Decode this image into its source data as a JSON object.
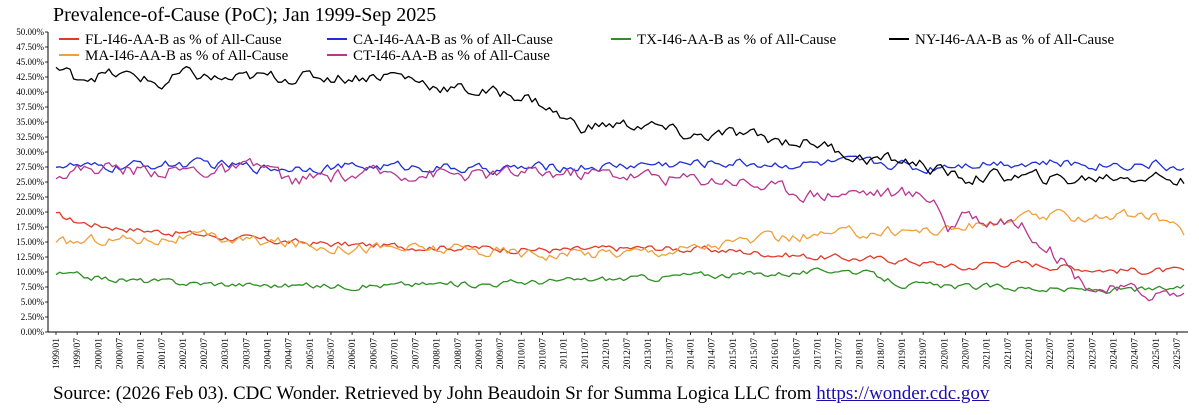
{
  "chart_data": {
    "type": "line",
    "title": "Prevalence-of-Cause (PoC); Jan 1999-Sep 2025",
    "y_tick_labels": [
      "0.00%",
      "2.50%",
      "5.00%",
      "7.50%",
      "10.00%",
      "12.50%",
      "15.00%",
      "17.50%",
      "20.00%",
      "22.50%",
      "25.00%",
      "27.50%",
      "30.00%",
      "32.50%",
      "35.00%",
      "37.50%",
      "40.00%",
      "42.50%",
      "45.00%",
      "47.50%",
      "50.00%"
    ],
    "ylim": [
      0,
      50
    ],
    "x_start": "1999/01",
    "x_end": "2025/09",
    "x_tick_every_months": 6,
    "grid": false,
    "legend_position": "top",
    "series": [
      {
        "name": "FL-I46-AA-B as % of All-Cause",
        "color": "#e03a2a",
        "anchors": [
          [
            "1999/01",
            19.5
          ],
          [
            "1999/06",
            18.5
          ],
          [
            "2000/01",
            17.8
          ],
          [
            "2001/01",
            17.0
          ],
          [
            "2002/01",
            16.5
          ],
          [
            "2003/01",
            15.8
          ],
          [
            "2004/01",
            15.2
          ],
          [
            "2005/01",
            14.8
          ],
          [
            "2006/01",
            14.5
          ],
          [
            "2007/01",
            14.3
          ],
          [
            "2008/01",
            14.2
          ],
          [
            "2009/01",
            14.0
          ],
          [
            "2010/01",
            13.8
          ],
          [
            "2011/01",
            13.6
          ],
          [
            "2012/01",
            13.8
          ],
          [
            "2013/01",
            14.0
          ],
          [
            "2014/01",
            13.8
          ],
          [
            "2015/01",
            13.5
          ],
          [
            "2016/01",
            13.0
          ],
          [
            "2017/01",
            12.5
          ],
          [
            "2018/01",
            12.2
          ],
          [
            "2019/01",
            12.0
          ],
          [
            "2019/07",
            11.5
          ],
          [
            "2020/01",
            11.2
          ],
          [
            "2020/07",
            10.5
          ],
          [
            "2021/01",
            11.5
          ],
          [
            "2021/07",
            11.5
          ],
          [
            "2022/01",
            11.3
          ],
          [
            "2023/01",
            10.8
          ],
          [
            "2024/01",
            10.3
          ],
          [
            "2025/01",
            10.2
          ],
          [
            "2025/09",
            10.0
          ]
        ],
        "noise": 0.5
      },
      {
        "name": "CA-I46-AA-B as % of All-Cause",
        "color": "#1f2fd6",
        "anchors": [
          [
            "1999/01",
            28.0
          ],
          [
            "2000/01",
            27.2
          ],
          [
            "2001/01",
            27.8
          ],
          [
            "2002/01",
            28.0
          ],
          [
            "2003/01",
            27.8
          ],
          [
            "2004/01",
            27.3
          ],
          [
            "2005/01",
            27.6
          ],
          [
            "2006/01",
            27.5
          ],
          [
            "2007/01",
            27.6
          ],
          [
            "2008/01",
            27.5
          ],
          [
            "2009/01",
            27.0
          ],
          [
            "2010/01",
            27.3
          ],
          [
            "2011/01",
            27.5
          ],
          [
            "2012/01",
            27.6
          ],
          [
            "2013/01",
            28.0
          ],
          [
            "2014/01",
            28.0
          ],
          [
            "2015/01",
            28.3
          ],
          [
            "2016/01",
            28.0
          ],
          [
            "2017/01",
            28.0
          ],
          [
            "2018/01",
            28.2
          ],
          [
            "2019/01",
            28.0
          ],
          [
            "2019/07",
            27.0
          ],
          [
            "2020/01",
            28.0
          ],
          [
            "2021/01",
            28.3
          ],
          [
            "2022/01",
            28.3
          ],
          [
            "2023/01",
            28.0
          ],
          [
            "2024/01",
            28.0
          ],
          [
            "2025/01",
            28.0
          ],
          [
            "2025/09",
            27.0
          ]
        ],
        "noise": 0.7
      },
      {
        "name": "TX-I46-AA-B as % of All-Cause",
        "color": "#2e8f23",
        "anchors": [
          [
            "1999/01",
            9.7
          ],
          [
            "2000/01",
            9.0
          ],
          [
            "2001/01",
            8.5
          ],
          [
            "2002/01",
            8.2
          ],
          [
            "2003/01",
            8.0
          ],
          [
            "2004/01",
            7.8
          ],
          [
            "2005/01",
            7.7
          ],
          [
            "2006/01",
            7.7
          ],
          [
            "2007/01",
            7.8
          ],
          [
            "2008/01",
            8.0
          ],
          [
            "2009/01",
            8.0
          ],
          [
            "2010/01",
            8.3
          ],
          [
            "2011/01",
            8.5
          ],
          [
            "2012/01",
            8.8
          ],
          [
            "2013/01",
            9.0
          ],
          [
            "2014/01",
            9.5
          ],
          [
            "2015/01",
            9.5
          ],
          [
            "2016/01",
            9.8
          ],
          [
            "2017/01",
            10.0
          ],
          [
            "2017/07",
            10.5
          ],
          [
            "2018/01",
            10.0
          ],
          [
            "2019/01",
            8.0
          ],
          [
            "2020/01",
            7.5
          ],
          [
            "2021/01",
            7.5
          ],
          [
            "2022/01",
            7.3
          ],
          [
            "2023/01",
            7.0
          ],
          [
            "2024/01",
            7.0
          ],
          [
            "2025/01",
            7.0
          ],
          [
            "2025/09",
            7.5
          ]
        ],
        "noise": 0.45
      },
      {
        "name": "NY-I46-AA-B as % of All-Cause",
        "color": "#000000",
        "anchors": [
          [
            "1999/01",
            44.0
          ],
          [
            "1999/06",
            42.5
          ],
          [
            "2000/01",
            43.0
          ],
          [
            "2001/01",
            42.5
          ],
          [
            "2001/07",
            41.0
          ],
          [
            "2002/01",
            43.0
          ],
          [
            "2003/01",
            42.0
          ],
          [
            "2004/01",
            42.5
          ],
          [
            "2005/01",
            42.5
          ],
          [
            "2006/01",
            42.5
          ],
          [
            "2007/01",
            43.0
          ],
          [
            "2008/01",
            41.0
          ],
          [
            "2009/01",
            40.0
          ],
          [
            "2010/01",
            39.5
          ],
          [
            "2010/07",
            38.0
          ],
          [
            "2011/01",
            35.5
          ],
          [
            "2011/07",
            34.0
          ],
          [
            "2012/01",
            34.5
          ],
          [
            "2013/01",
            34.5
          ],
          [
            "2014/01",
            32.5
          ],
          [
            "2015/01",
            33.0
          ],
          [
            "2016/01",
            32.0
          ],
          [
            "2017/01",
            31.5
          ],
          [
            "2018/01",
            29.0
          ],
          [
            "2019/01",
            28.5
          ],
          [
            "2019/07",
            28.0
          ],
          [
            "2020/01",
            26.5
          ],
          [
            "2020/07",
            25.5
          ],
          [
            "2021/01",
            26.0
          ],
          [
            "2022/01",
            25.8
          ],
          [
            "2023/01",
            25.3
          ],
          [
            "2024/01",
            26.0
          ],
          [
            "2025/01",
            26.0
          ],
          [
            "2025/09",
            25.0
          ]
        ],
        "noise": 0.9
      },
      {
        "name": "MA-I46-AA-B as % of All-Cause",
        "color": "#f0a03a",
        "anchors": [
          [
            "1999/01",
            14.5
          ],
          [
            "2000/01",
            15.5
          ],
          [
            "2001/01",
            15.5
          ],
          [
            "2002/01",
            15.8
          ],
          [
            "2003/01",
            15.5
          ],
          [
            "2004/01",
            15.0
          ],
          [
            "2005/01",
            14.5
          ],
          [
            "2006/01",
            14.2
          ],
          [
            "2007/01",
            14.0
          ],
          [
            "2008/01",
            13.8
          ],
          [
            "2009/01",
            13.5
          ],
          [
            "2010/01",
            13.3
          ],
          [
            "2011/01",
            13.0
          ],
          [
            "2012/01",
            13.3
          ],
          [
            "2013/01",
            13.5
          ],
          [
            "2014/01",
            14.0
          ],
          [
            "2015/01",
            15.0
          ],
          [
            "2016/01",
            15.5
          ],
          [
            "2017/01",
            16.0
          ],
          [
            "2018/01",
            16.5
          ],
          [
            "2019/01",
            17.0
          ],
          [
            "2020/01",
            17.0
          ],
          [
            "2021/01",
            18.0
          ],
          [
            "2022/01",
            19.0
          ],
          [
            "2023/01",
            19.3
          ],
          [
            "2024/01",
            19.5
          ],
          [
            "2025/01",
            19.0
          ],
          [
            "2025/05",
            18.5
          ],
          [
            "2025/09",
            15.8
          ]
        ],
        "noise": 0.8
      },
      {
        "name": "CT-I46-AA-B as % of All-Cause",
        "color": "#b8368f",
        "anchors": [
          [
            "1999/01",
            26.5
          ],
          [
            "2000/01",
            27.5
          ],
          [
            "2001/01",
            27.0
          ],
          [
            "2002/01",
            27.0
          ],
          [
            "2003/01",
            26.8
          ],
          [
            "2004/01",
            27.5
          ],
          [
            "2004/07",
            25.0
          ],
          [
            "2005/01",
            25.5
          ],
          [
            "2006/01",
            26.0
          ],
          [
            "2007/01",
            26.5
          ],
          [
            "2008/01",
            26.5
          ],
          [
            "2009/01",
            26.0
          ],
          [
            "2010/01",
            26.5
          ],
          [
            "2011/01",
            26.5
          ],
          [
            "2012/01",
            26.5
          ],
          [
            "2013/01",
            26.0
          ],
          [
            "2014/01",
            25.5
          ],
          [
            "2015/01",
            25.5
          ],
          [
            "2016/01",
            24.0
          ],
          [
            "2017/01",
            23.0
          ],
          [
            "2018/01",
            23.5
          ],
          [
            "2019/01",
            23.0
          ],
          [
            "2019/10",
            22.5
          ],
          [
            "2020/02",
            17.5
          ],
          [
            "2020/08",
            19.5
          ],
          [
            "2021/01",
            18.5
          ],
          [
            "2021/07",
            19.0
          ],
          [
            "2022/01",
            17.0
          ],
          [
            "2022/07",
            14.0
          ],
          [
            "2023/01",
            10.0
          ],
          [
            "2023/07",
            7.5
          ],
          [
            "2024/01",
            7.0
          ],
          [
            "2025/01",
            6.5
          ],
          [
            "2025/09",
            6.2
          ]
        ],
        "noise": 1.0
      }
    ]
  },
  "source": {
    "prefix": "Source: (2026 Feb 03). CDC Wonder. Retrieved by John Beaudoin Sr for Summa Logica LLC from ",
    "link_text": "https://wonder.cdc.gov"
  }
}
